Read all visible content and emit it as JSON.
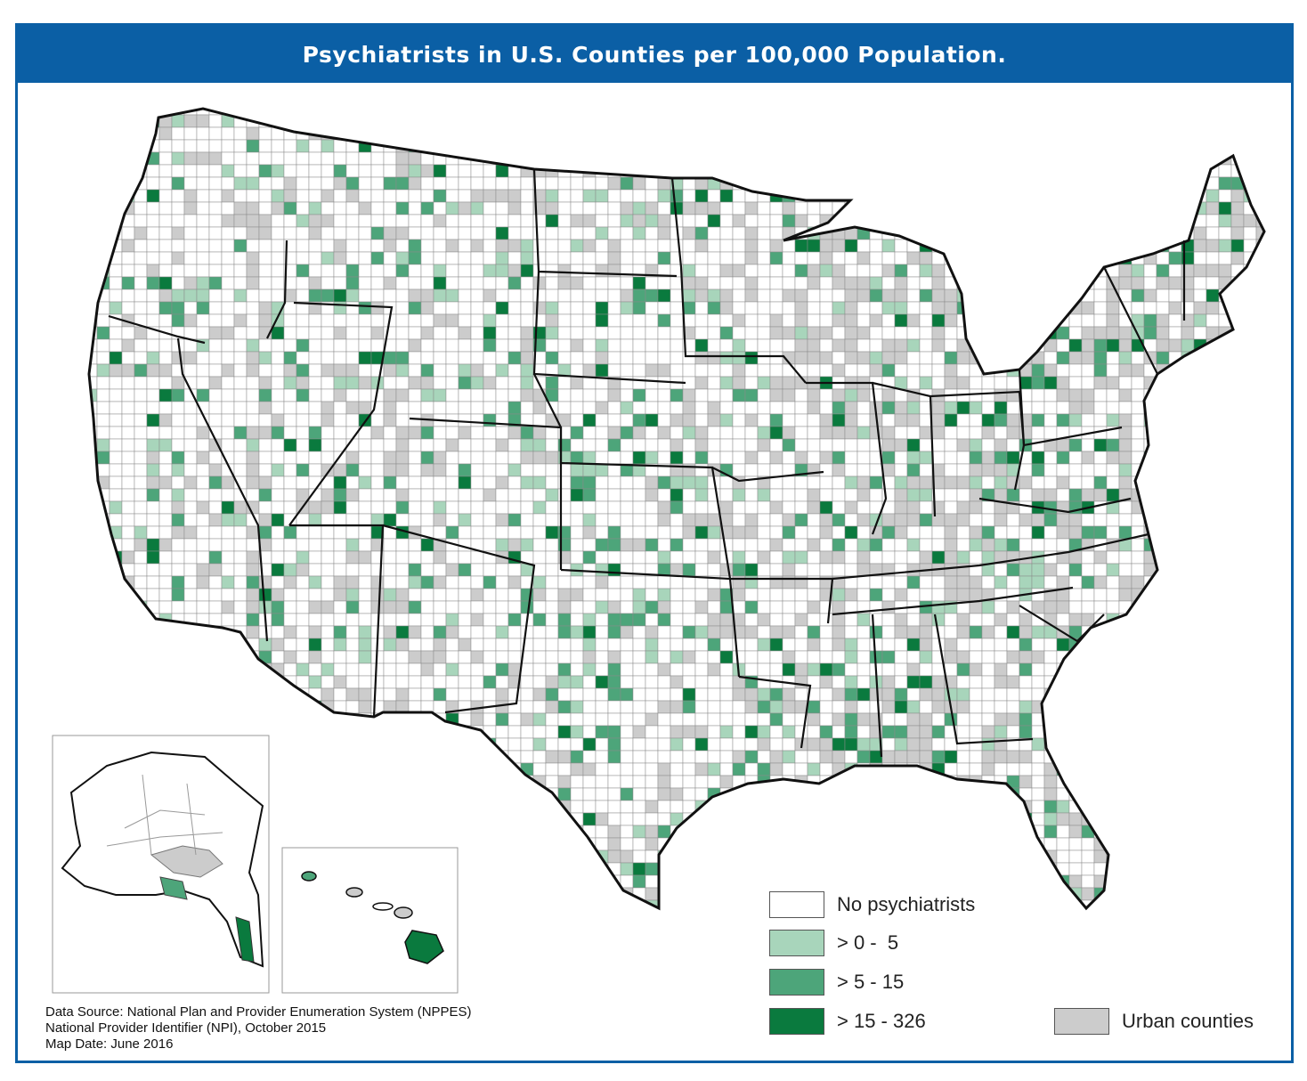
{
  "title": "Psychiatrists in U.S. Counties per 100,000 Population.",
  "colors": {
    "frame": "#0b5fa5",
    "none": "#ffffff",
    "low": "#a8d5bb",
    "mid": "#4da57a",
    "high": "#0a7a3e",
    "urban": "#cccccc",
    "border": "#111111"
  },
  "legend": {
    "items": [
      {
        "label": "No psychiatrists",
        "color": "#ffffff"
      },
      {
        "label": "> 0 -  5",
        "color": "#a8d5bb"
      },
      {
        "label": "> 5 - 15",
        "color": "#4da57a"
      },
      {
        "label": "> 15 - 326",
        "color": "#0a7a3e"
      }
    ],
    "urban": {
      "label": "Urban counties",
      "color": "#cccccc"
    }
  },
  "source": {
    "line1": "Data Source: National Plan and Provider Enumeration System (NPPES)",
    "line2": "National Provider Identifier (NPI), October 2015",
    "line3": "Map Date: June 2016"
  }
}
